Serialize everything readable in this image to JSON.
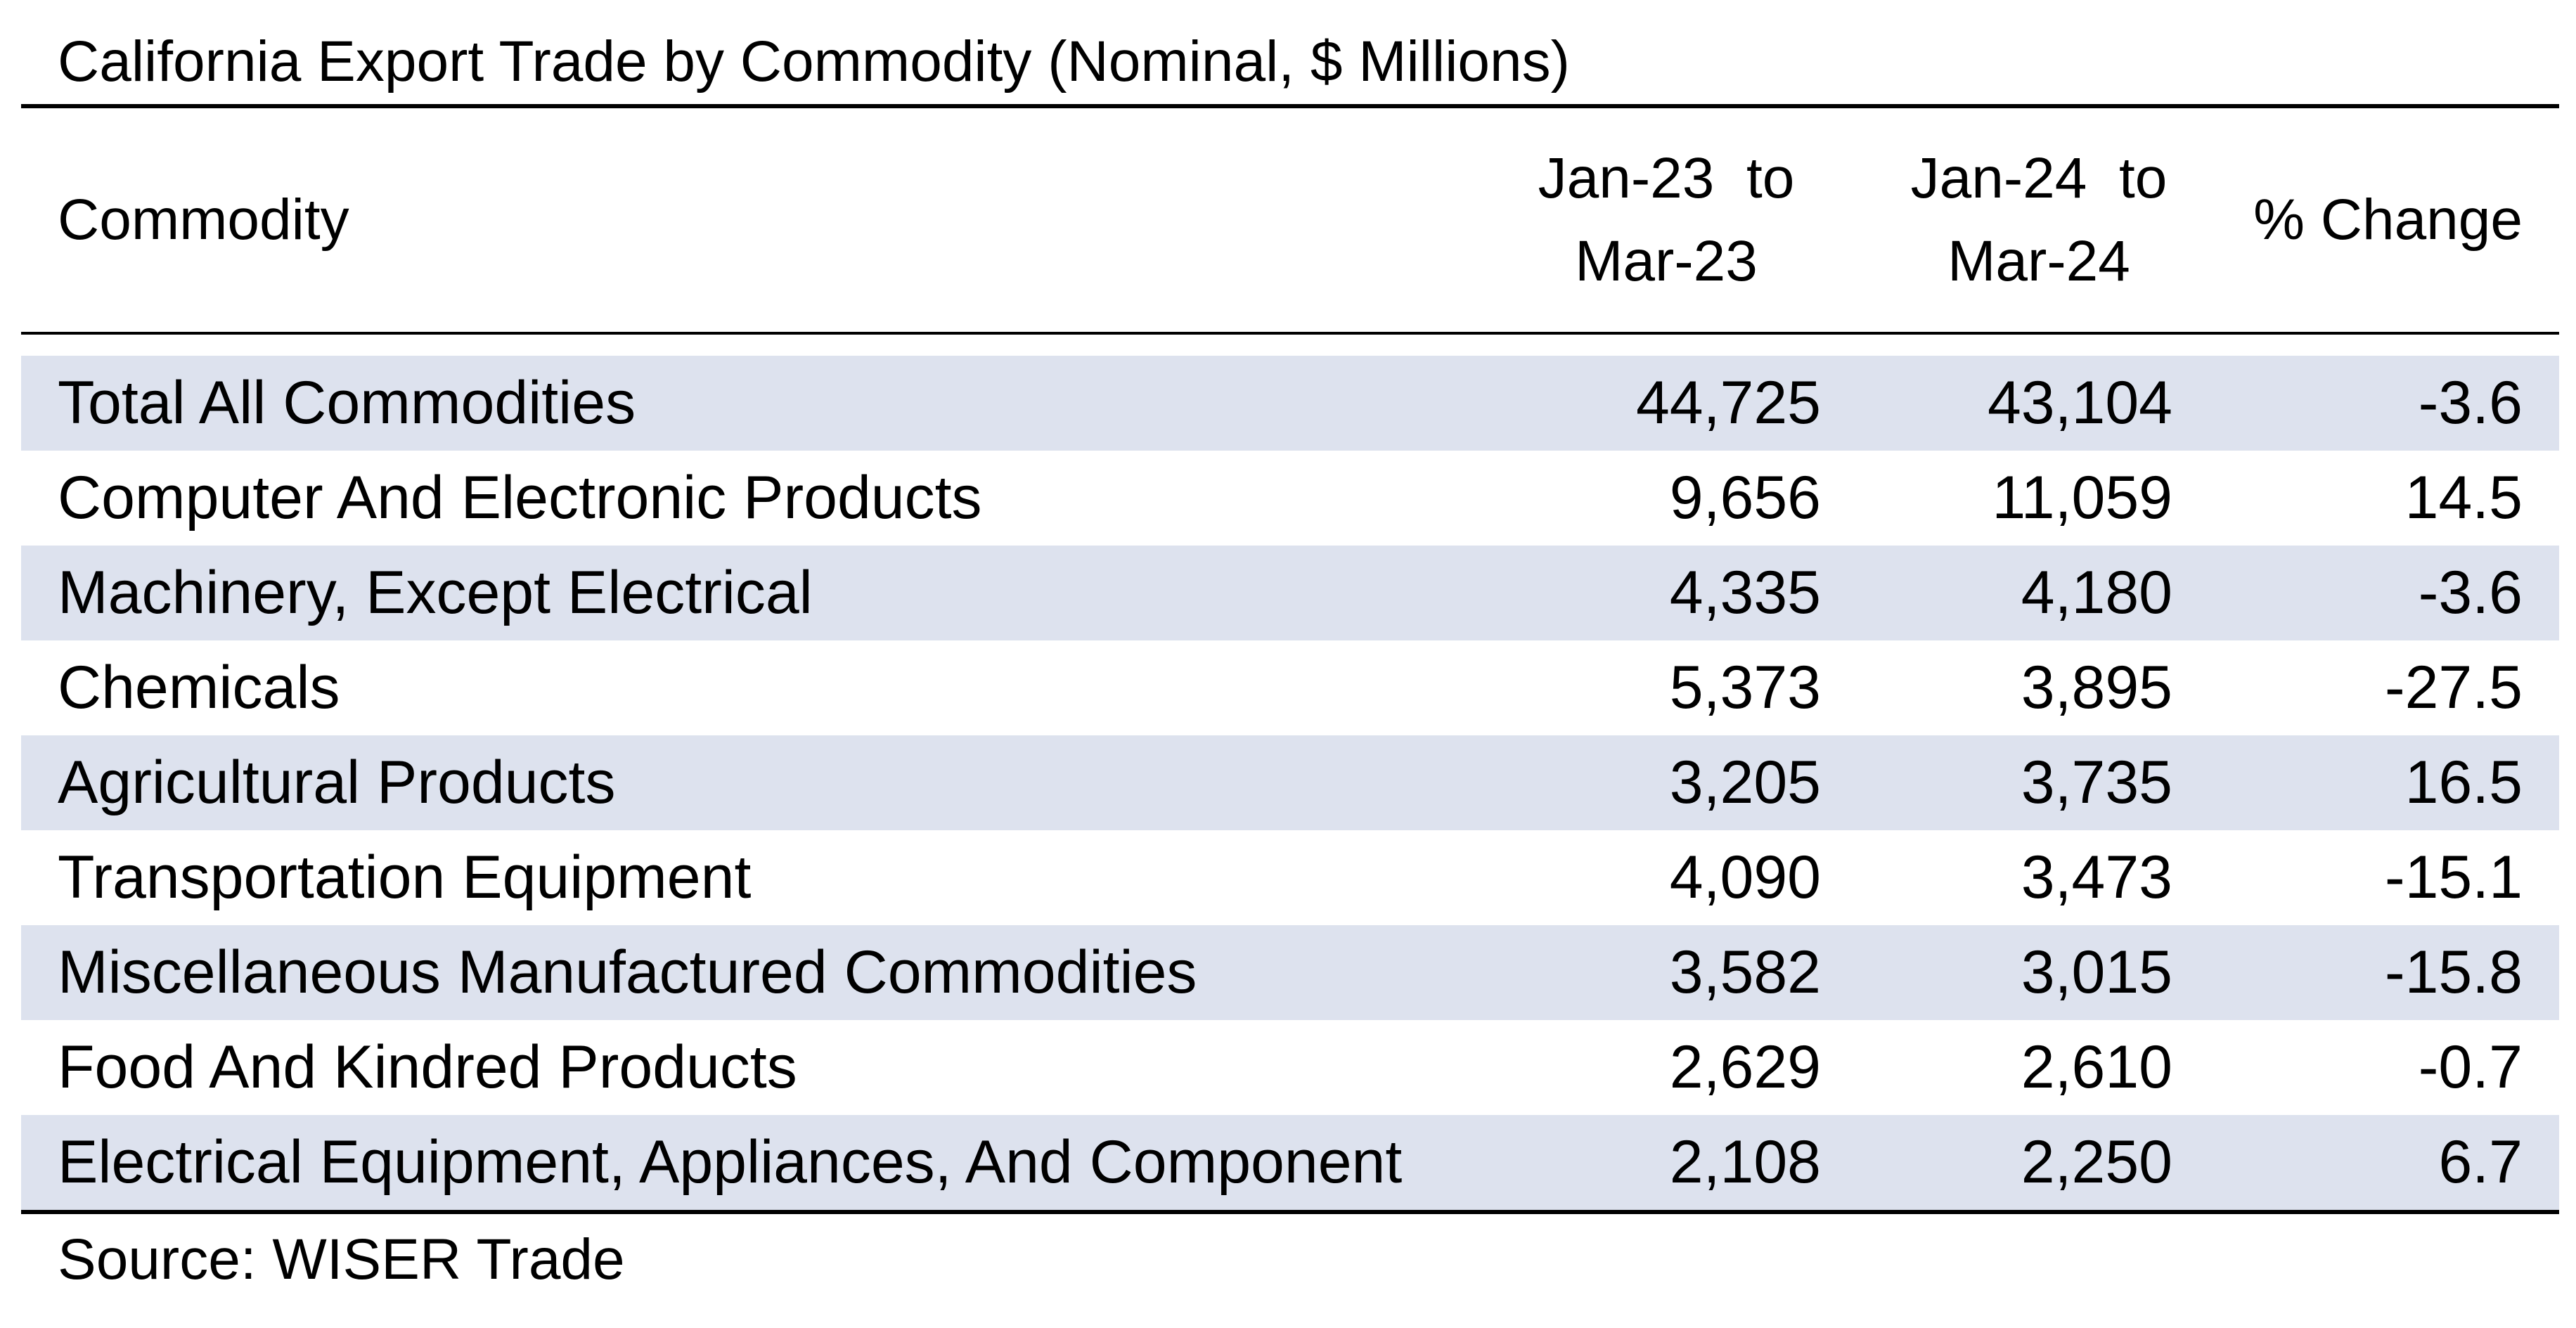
{
  "chart_data": {
    "type": "table",
    "title": "California Export Trade by Commodity (Nominal, $ Millions)",
    "columns": [
      "Commodity",
      "Jan-23 to Mar-23",
      "Jan-24 to Mar-24",
      "% Change"
    ],
    "header": {
      "commodity": "Commodity",
      "period1_line1": "Jan-23  to",
      "period1_line2": "Mar-23",
      "period2_line1": "Jan-24  to",
      "period2_line2": "Mar-24",
      "change": "% Change"
    },
    "rows": [
      {
        "commodity": "Total All Commodities",
        "period1": "44,725",
        "period2": "43,104",
        "change": "-3.6"
      },
      {
        "commodity": "Computer And Electronic Products",
        "period1": "9,656",
        "period2": "11,059",
        "change": "14.5"
      },
      {
        "commodity": "Machinery, Except Electrical",
        "period1": "4,335",
        "period2": "4,180",
        "change": "-3.6"
      },
      {
        "commodity": "Chemicals",
        "period1": "5,373",
        "period2": "3,895",
        "change": "-27.5"
      },
      {
        "commodity": "Agricultural Products",
        "period1": "3,205",
        "period2": "3,735",
        "change": "16.5"
      },
      {
        "commodity": "Transportation Equipment",
        "period1": "4,090",
        "period2": "3,473",
        "change": "-15.1"
      },
      {
        "commodity": "Miscellaneous Manufactured Commodities",
        "period1": "3,582",
        "period2": "3,015",
        "change": "-15.8"
      },
      {
        "commodity": "Food And Kindred Products",
        "period1": "2,629",
        "period2": "2,610",
        "change": "-0.7"
      },
      {
        "commodity": "Electrical Equipment, Appliances, And Component",
        "period1": "2,108",
        "period2": "2,250",
        "change": "6.7"
      }
    ],
    "source": "Source: WISER Trade",
    "row_shading_color": "#dde2ee"
  }
}
